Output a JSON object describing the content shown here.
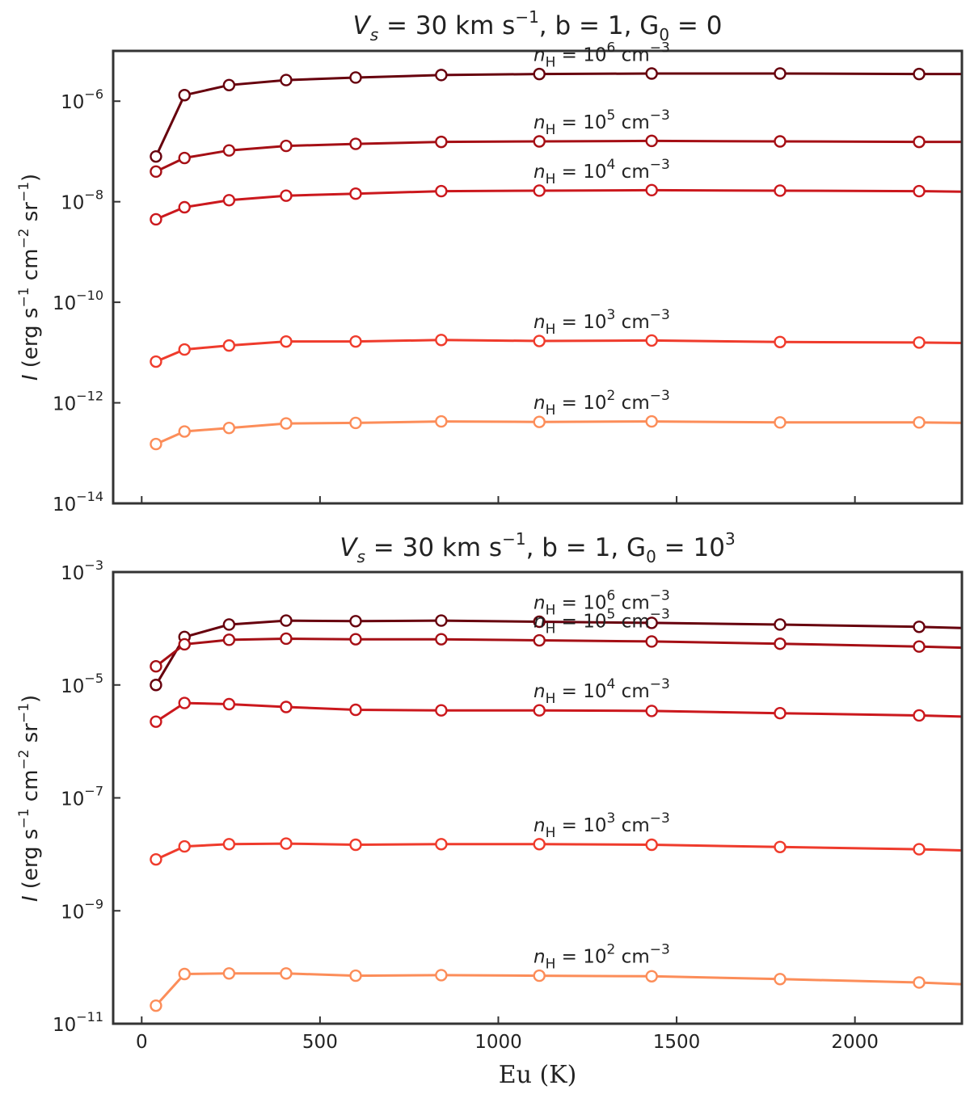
{
  "chart_data": [
    {
      "type": "line",
      "title": "V_s = 30 km s^-1, b = 1, G_0 = 0",
      "title_parts": {
        "vs": "V",
        "vs_sub": "s",
        "vs_eq": " = 30 km s",
        "vs_exp": "−1",
        "b": ", b = 1, G",
        "g_sub": "0",
        "g_eq": " = 0",
        "g_exp": ""
      },
      "xlabel": "",
      "ylabel": "I (erg s^-1 cm^-2 sr^-1)",
      "xlim": [
        -80,
        2300
      ],
      "ylim_log10": [
        -14,
        -5
      ],
      "yticks_log10": [
        -14,
        -12,
        -10,
        -8,
        -6
      ],
      "x": [
        40,
        120,
        245,
        405,
        600,
        840,
        1115,
        1430,
        1790,
        2180,
        2300
      ],
      "series": [
        {
          "name": "nH = 10^6 cm^-3",
          "label_exp": "6",
          "color": "#67000d",
          "log10_values": [
            -7.1,
            -5.88,
            -5.68,
            -5.58,
            -5.53,
            -5.48,
            -5.46,
            -5.45,
            -5.45,
            -5.46,
            -5.46
          ]
        },
        {
          "name": "nH = 10^5 cm^-3",
          "label_exp": "5",
          "color": "#a50f15",
          "log10_values": [
            -7.4,
            -7.13,
            -6.98,
            -6.89,
            -6.85,
            -6.81,
            -6.8,
            -6.79,
            -6.8,
            -6.81,
            -6.81
          ]
        },
        {
          "name": "nH = 10^4 cm^-3",
          "label_exp": "4",
          "color": "#cb181d",
          "log10_values": [
            -8.35,
            -8.11,
            -7.97,
            -7.88,
            -7.84,
            -7.79,
            -7.78,
            -7.77,
            -7.78,
            -7.79,
            -7.8
          ]
        },
        {
          "name": "nH = 10^3 cm^-3",
          "label_exp": "3",
          "color": "#ef3b2c",
          "log10_values": [
            -11.18,
            -10.94,
            -10.86,
            -10.78,
            -10.78,
            -10.75,
            -10.77,
            -10.76,
            -10.79,
            -10.8,
            -10.81
          ]
        },
        {
          "name": "nH = 10^2 cm^-3",
          "label_exp": "2",
          "color": "#fc8d59",
          "log10_values": [
            -12.82,
            -12.57,
            -12.5,
            -12.41,
            -12.4,
            -12.37,
            -12.38,
            -12.37,
            -12.39,
            -12.39,
            -12.4
          ]
        }
      ]
    },
    {
      "type": "line",
      "title": "V_s = 30 km s^-1, b = 1, G_0 = 10^3",
      "title_parts": {
        "vs": "V",
        "vs_sub": "s",
        "vs_eq": " = 30 km s",
        "vs_exp": "−1",
        "b": ", b = 1, G",
        "g_sub": "0",
        "g_eq": " = 10",
        "g_exp": "3"
      },
      "xlabel": "Eu (K)",
      "ylabel": "I (erg s^-1 cm^-2 sr^-1)",
      "xlim": [
        -80,
        2300
      ],
      "ylim_log10": [
        -11,
        -3
      ],
      "yticks_log10": [
        -11,
        -9,
        -7,
        -5,
        -3
      ],
      "x": [
        40,
        120,
        245,
        405,
        600,
        840,
        1115,
        1430,
        1790,
        2180,
        2300
      ],
      "series": [
        {
          "name": "nH = 10^6 cm^-3",
          "label_exp": "6",
          "color": "#67000d",
          "log10_values": [
            -5.0,
            -4.15,
            -3.93,
            -3.86,
            -3.87,
            -3.86,
            -3.88,
            -3.9,
            -3.93,
            -3.97,
            -3.99
          ]
        },
        {
          "name": "nH = 10^5 cm^-3",
          "label_exp": "5",
          "color": "#a50f15",
          "log10_values": [
            -4.67,
            -4.28,
            -4.2,
            -4.18,
            -4.19,
            -4.19,
            -4.21,
            -4.23,
            -4.27,
            -4.32,
            -4.34
          ]
        },
        {
          "name": "nH = 10^4 cm^-3",
          "label_exp": "4",
          "color": "#cb181d",
          "log10_values": [
            -5.65,
            -5.32,
            -5.34,
            -5.39,
            -5.44,
            -5.45,
            -5.45,
            -5.46,
            -5.5,
            -5.54,
            -5.56
          ]
        },
        {
          "name": "nH = 10^3 cm^-3",
          "label_exp": "3",
          "color": "#ef3b2c",
          "log10_values": [
            -8.09,
            -7.86,
            -7.82,
            -7.81,
            -7.83,
            -7.82,
            -7.82,
            -7.83,
            -7.87,
            -7.91,
            -7.93
          ]
        },
        {
          "name": "nH = 10^2 cm^-3",
          "label_exp": "2",
          "color": "#fc8d59",
          "log10_values": [
            -10.68,
            -10.12,
            -10.11,
            -10.11,
            -10.15,
            -10.14,
            -10.15,
            -10.16,
            -10.21,
            -10.27,
            -10.3
          ]
        }
      ]
    }
  ],
  "series_label": {
    "n": "n",
    "sub": "H",
    "eq": " = 10",
    "unit": " cm",
    "unit_exp": "−3"
  },
  "ylabel_parts": {
    "i": "I",
    "open": " (erg s",
    "e1": "−1",
    "cm": " cm",
    "e2": "−2",
    "sr": " sr",
    "e3": "−1",
    "close": ")"
  },
  "tick_base": "10",
  "tick_exp_prefix": "−"
}
